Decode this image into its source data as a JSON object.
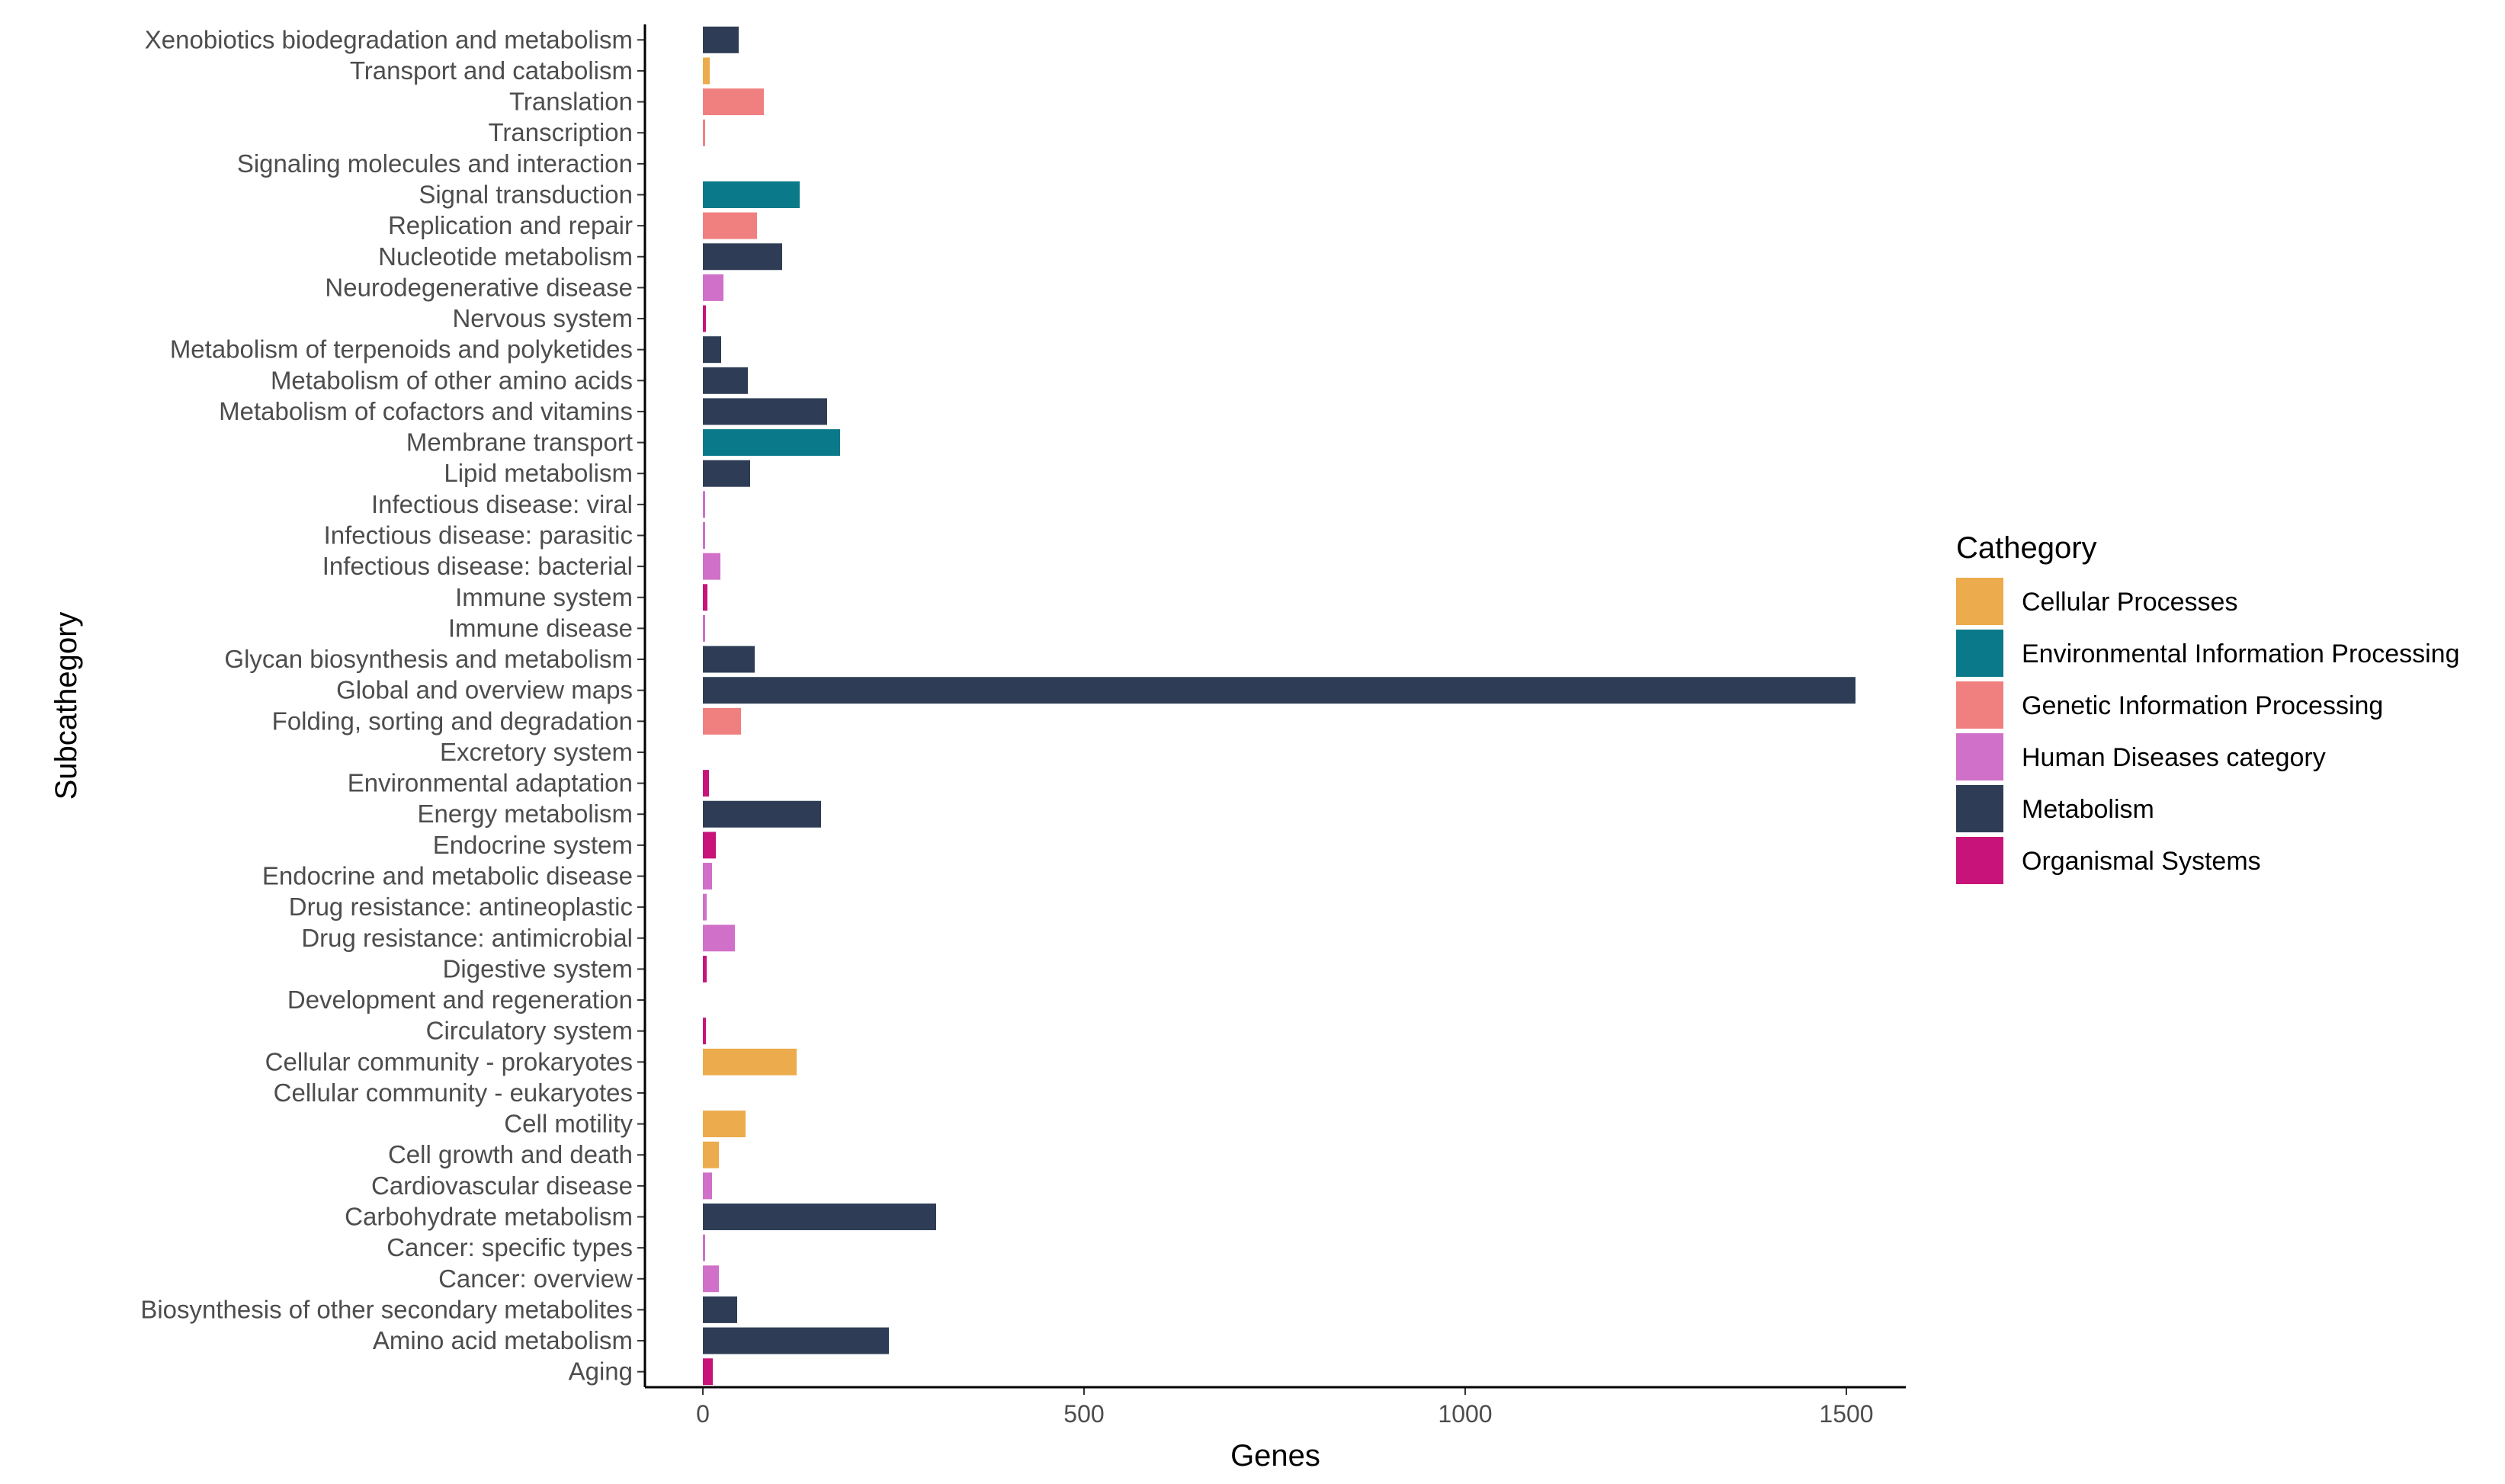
{
  "chart_data": {
    "type": "bar",
    "orientation": "horizontal",
    "xlabel": "Genes",
    "ylabel": "Subcathegory",
    "xlim": [
      -75,
      1585
    ],
    "xticks": [
      0,
      500,
      1000,
      1500
    ],
    "grid": false,
    "legend": {
      "title": "Cathegory",
      "position": "right",
      "entries": [
        {
          "name": "Cellular Processes",
          "color": "#ECAB4C"
        },
        {
          "name": "Environmental Information Processing",
          "color": "#0A7A8A"
        },
        {
          "name": "Genetic Information Processing",
          "color": "#F08080"
        },
        {
          "name": "Human Diseases category",
          "color": "#D070C8"
        },
        {
          "name": "Metabolism",
          "color": "#2E3D55"
        },
        {
          "name": "Organismal Systems",
          "color": "#C8147A"
        }
      ]
    },
    "bars": [
      {
        "label": "Xenobiotics biodegradation and metabolism",
        "value": 47,
        "category": "Metabolism"
      },
      {
        "label": "Transport and catabolism",
        "value": 9,
        "category": "Cellular Processes"
      },
      {
        "label": "Translation",
        "value": 80,
        "category": "Genetic Information Processing"
      },
      {
        "label": "Transcription",
        "value": 3,
        "category": "Genetic Information Processing"
      },
      {
        "label": "Signaling molecules and interaction",
        "value": 0,
        "category": "Environmental Information Processing"
      },
      {
        "label": "Signal transduction",
        "value": 127,
        "category": "Environmental Information Processing"
      },
      {
        "label": "Replication and repair",
        "value": 71,
        "category": "Genetic Information Processing"
      },
      {
        "label": "Nucleotide metabolism",
        "value": 104,
        "category": "Metabolism"
      },
      {
        "label": "Neurodegenerative disease",
        "value": 27,
        "category": "Human Diseases category"
      },
      {
        "label": "Nervous system",
        "value": 4,
        "category": "Organismal Systems"
      },
      {
        "label": "Metabolism of terpenoids and polyketides",
        "value": 24,
        "category": "Metabolism"
      },
      {
        "label": "Metabolism of other amino acids",
        "value": 59,
        "category": "Metabolism"
      },
      {
        "label": "Metabolism of cofactors and vitamins",
        "value": 163,
        "category": "Metabolism"
      },
      {
        "label": "Membrane transport",
        "value": 180,
        "category": "Environmental Information Processing"
      },
      {
        "label": "Lipid metabolism",
        "value": 62,
        "category": "Metabolism"
      },
      {
        "label": "Infectious disease: viral",
        "value": 2,
        "category": "Human Diseases category"
      },
      {
        "label": "Infectious disease: parasitic",
        "value": 3,
        "category": "Human Diseases category"
      },
      {
        "label": "Infectious disease: bacterial",
        "value": 23,
        "category": "Human Diseases category"
      },
      {
        "label": "Immune system",
        "value": 6,
        "category": "Organismal Systems"
      },
      {
        "label": "Immune disease",
        "value": 2,
        "category": "Human Diseases category"
      },
      {
        "label": "Glycan biosynthesis and metabolism",
        "value": 68,
        "category": "Metabolism"
      },
      {
        "label": "Global and overview maps",
        "value": 1512,
        "category": "Metabolism"
      },
      {
        "label": "Folding, sorting and degradation",
        "value": 50,
        "category": "Genetic Information Processing"
      },
      {
        "label": "Excretory system",
        "value": 0,
        "category": "Organismal Systems"
      },
      {
        "label": "Environmental adaptation",
        "value": 8,
        "category": "Organismal Systems"
      },
      {
        "label": "Energy metabolism",
        "value": 155,
        "category": "Metabolism"
      },
      {
        "label": "Endocrine system",
        "value": 17,
        "category": "Organismal Systems"
      },
      {
        "label": "Endocrine and metabolic disease",
        "value": 12,
        "category": "Human Diseases category"
      },
      {
        "label": "Drug resistance: antineoplastic",
        "value": 5,
        "category": "Human Diseases category"
      },
      {
        "label": "Drug resistance: antimicrobial",
        "value": 42,
        "category": "Human Diseases category"
      },
      {
        "label": "Digestive system",
        "value": 5,
        "category": "Organismal Systems"
      },
      {
        "label": "Development and regeneration",
        "value": 0,
        "category": "Organismal Systems"
      },
      {
        "label": "Circulatory system",
        "value": 4,
        "category": "Organismal Systems"
      },
      {
        "label": "Cellular community - prokaryotes",
        "value": 123,
        "category": "Cellular Processes"
      },
      {
        "label": "Cellular community - eukaryotes",
        "value": 0,
        "category": "Cellular Processes"
      },
      {
        "label": "Cell motility",
        "value": 56,
        "category": "Cellular Processes"
      },
      {
        "label": "Cell growth and death",
        "value": 21,
        "category": "Cellular Processes"
      },
      {
        "label": "Cardiovascular disease",
        "value": 12,
        "category": "Human Diseases category"
      },
      {
        "label": "Carbohydrate metabolism",
        "value": 306,
        "category": "Metabolism"
      },
      {
        "label": "Cancer: specific types",
        "value": 2,
        "category": "Human Diseases category"
      },
      {
        "label": "Cancer: overview",
        "value": 21,
        "category": "Human Diseases category"
      },
      {
        "label": "Biosynthesis of other secondary metabolites",
        "value": 45,
        "category": "Metabolism"
      },
      {
        "label": "Amino acid metabolism",
        "value": 244,
        "category": "Metabolism"
      },
      {
        "label": "Aging",
        "value": 13,
        "category": "Organismal Systems"
      }
    ]
  }
}
